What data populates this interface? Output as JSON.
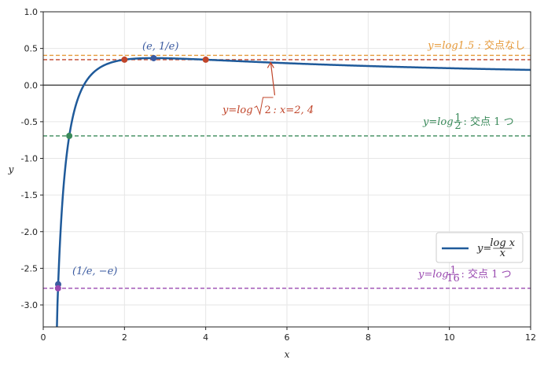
{
  "chart_data": {
    "type": "line",
    "xlabel": "x",
    "ylabel": "y",
    "xlim": [
      0,
      12
    ],
    "ylim": [
      -3.3,
      1.0
    ],
    "xticks": [
      0,
      2,
      4,
      6,
      8,
      10,
      12
    ],
    "yticks": [
      1.0,
      0.5,
      0.0,
      -0.5,
      -1.0,
      -1.5,
      -2.0,
      -2.5,
      -3.0
    ],
    "xtick_labels": [
      "0",
      "2",
      "4",
      "6",
      "8",
      "10",
      "12"
    ],
    "ytick_labels": [
      "1.0",
      "0.5",
      "0.0",
      "-0.5",
      "-1.0",
      "-1.5",
      "-2.0",
      "-2.5",
      "-3.0"
    ],
    "grid": true,
    "legend_position": "lower-right",
    "curve": {
      "name": "y = log x / x",
      "legend_label": "y=",
      "legend_num": "log x",
      "legend_den": "x",
      "color": "#1f5a9a",
      "function": "ln(x)/x",
      "x_range": [
        0.35,
        12
      ]
    },
    "hlines": [
      {
        "y": 0.4055,
        "color": "#e69a3a",
        "label": "y=log1.5 : 交点なし"
      },
      {
        "y": 0.3466,
        "color": "#c0452a",
        "label": "y=log√2 : x=2, 4"
      },
      {
        "y": -0.6931,
        "color": "#3a8a5a",
        "label": "y=log(1/2) : 交点 1 つ"
      },
      {
        "y": -2.7726,
        "color": "#9a4ab0",
        "label": "y=log(1/16) : 交点 1 つ"
      }
    ],
    "points": [
      {
        "x": 2.7183,
        "y": 0.3679,
        "color": "#3a5aa0"
      },
      {
        "x": 0.3679,
        "y": -2.7183,
        "color": "#3a5aa0"
      },
      {
        "x": 2,
        "y": 0.3466,
        "color": "#c0452a"
      },
      {
        "x": 4,
        "y": 0.3466,
        "color": "#c0452a"
      },
      {
        "x": 0.6412,
        "y": -0.6931,
        "color": "#3a8a5a"
      },
      {
        "x": 0.3642,
        "y": -2.7726,
        "color": "#9a4ab0"
      }
    ],
    "annotations": {
      "max_label": "(e, 1/e)",
      "min_label": "(1/e, −e)",
      "log15": {
        "prefix": "y=log1.5 : ",
        "suffix": "交点なし"
      },
      "logsqrt2": {
        "prefix": "y=log",
        "radicand": "2",
        "suffix": " : x=2, 4"
      },
      "loghalf": {
        "prefix": "y=log",
        "num": "1",
        "den": "2",
        "suffix": " : 交点 1 つ"
      },
      "log16": {
        "prefix": "y=log",
        "num": "1",
        "den": "16",
        "suffix": " : 交点 1 つ"
      }
    },
    "arrow": {
      "from": [
        5.7,
        0.0
      ],
      "to": [
        5.6,
        0.33
      ],
      "color": "#c0452a"
    }
  }
}
